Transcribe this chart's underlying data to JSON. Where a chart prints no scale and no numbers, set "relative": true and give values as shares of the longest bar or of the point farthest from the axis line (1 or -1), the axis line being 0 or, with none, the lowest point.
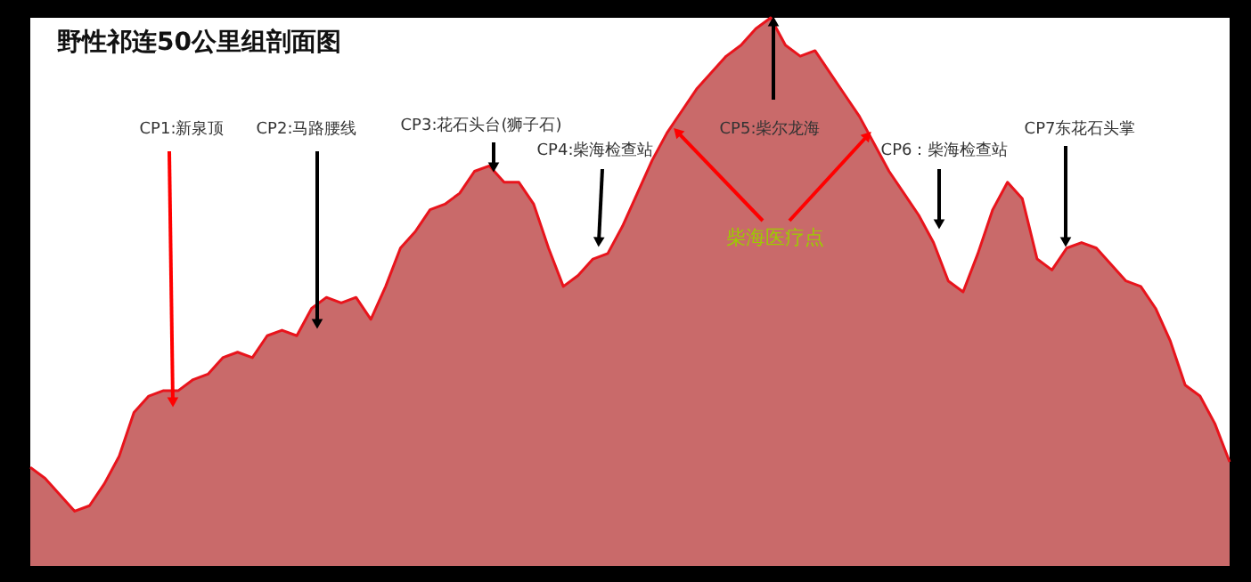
{
  "chart_data": {
    "type": "area",
    "title": "野性祁连50公里组剖面图",
    "relative": true,
    "categories": [
      null,
      null,
      null,
      null,
      null,
      null,
      null,
      null,
      null,
      null,
      null,
      null,
      null,
      null,
      null,
      null,
      null,
      null,
      null,
      null,
      null,
      null,
      null,
      null,
      null,
      null,
      null,
      null,
      null,
      null,
      null,
      null,
      null,
      null,
      null,
      null,
      null,
      null,
      null,
      null,
      null,
      null,
      null,
      null,
      null,
      null,
      null,
      null,
      null,
      null,
      null,
      null,
      null,
      null,
      null,
      null,
      null,
      null,
      null,
      null,
      null,
      null,
      null,
      null,
      null,
      null,
      null,
      null,
      null,
      null,
      null,
      null,
      null,
      null,
      null,
      null,
      null,
      null,
      null,
      null,
      null,
      null
    ],
    "series": [
      {
        "color": "#c96a6a",
        "values": [
          0.18,
          0.16,
          0.13,
          0.1,
          0.11,
          0.15,
          0.2,
          0.28,
          0.31,
          0.32,
          0.32,
          0.34,
          0.35,
          0.38,
          0.39,
          0.38,
          0.42,
          0.43,
          0.42,
          0.47,
          0.49,
          0.48,
          0.49,
          0.45,
          0.51,
          0.58,
          0.61,
          0.65,
          0.66,
          0.68,
          0.72,
          0.73,
          0.7,
          0.7,
          0.66,
          0.58,
          0.51,
          0.53,
          0.56,
          0.57,
          0.62,
          0.68,
          0.74,
          0.79,
          0.83,
          0.87,
          0.9,
          0.93,
          0.95,
          0.98,
          1.0,
          0.95,
          0.93,
          0.94,
          0.9,
          0.86,
          0.82,
          0.77,
          0.72,
          0.68,
          0.64,
          0.59,
          0.52,
          0.5,
          0.57,
          0.65,
          0.7,
          0.67,
          0.56,
          0.54,
          0.58,
          0.59,
          0.58,
          0.55,
          0.52,
          0.51,
          0.47,
          0.41,
          0.33,
          0.31,
          0.26,
          0.19
        ]
      }
    ],
    "annotations": [
      "CP1:新泉顶",
      "CP2:马路腰线",
      "CP3:花石头台(狮子石)",
      "CP4:柴海检查站",
      "CP5:柴尔龙海",
      "CP6：柴海检查站",
      "CP7东花石头掌",
      "柴海医疗点"
    ]
  }
}
